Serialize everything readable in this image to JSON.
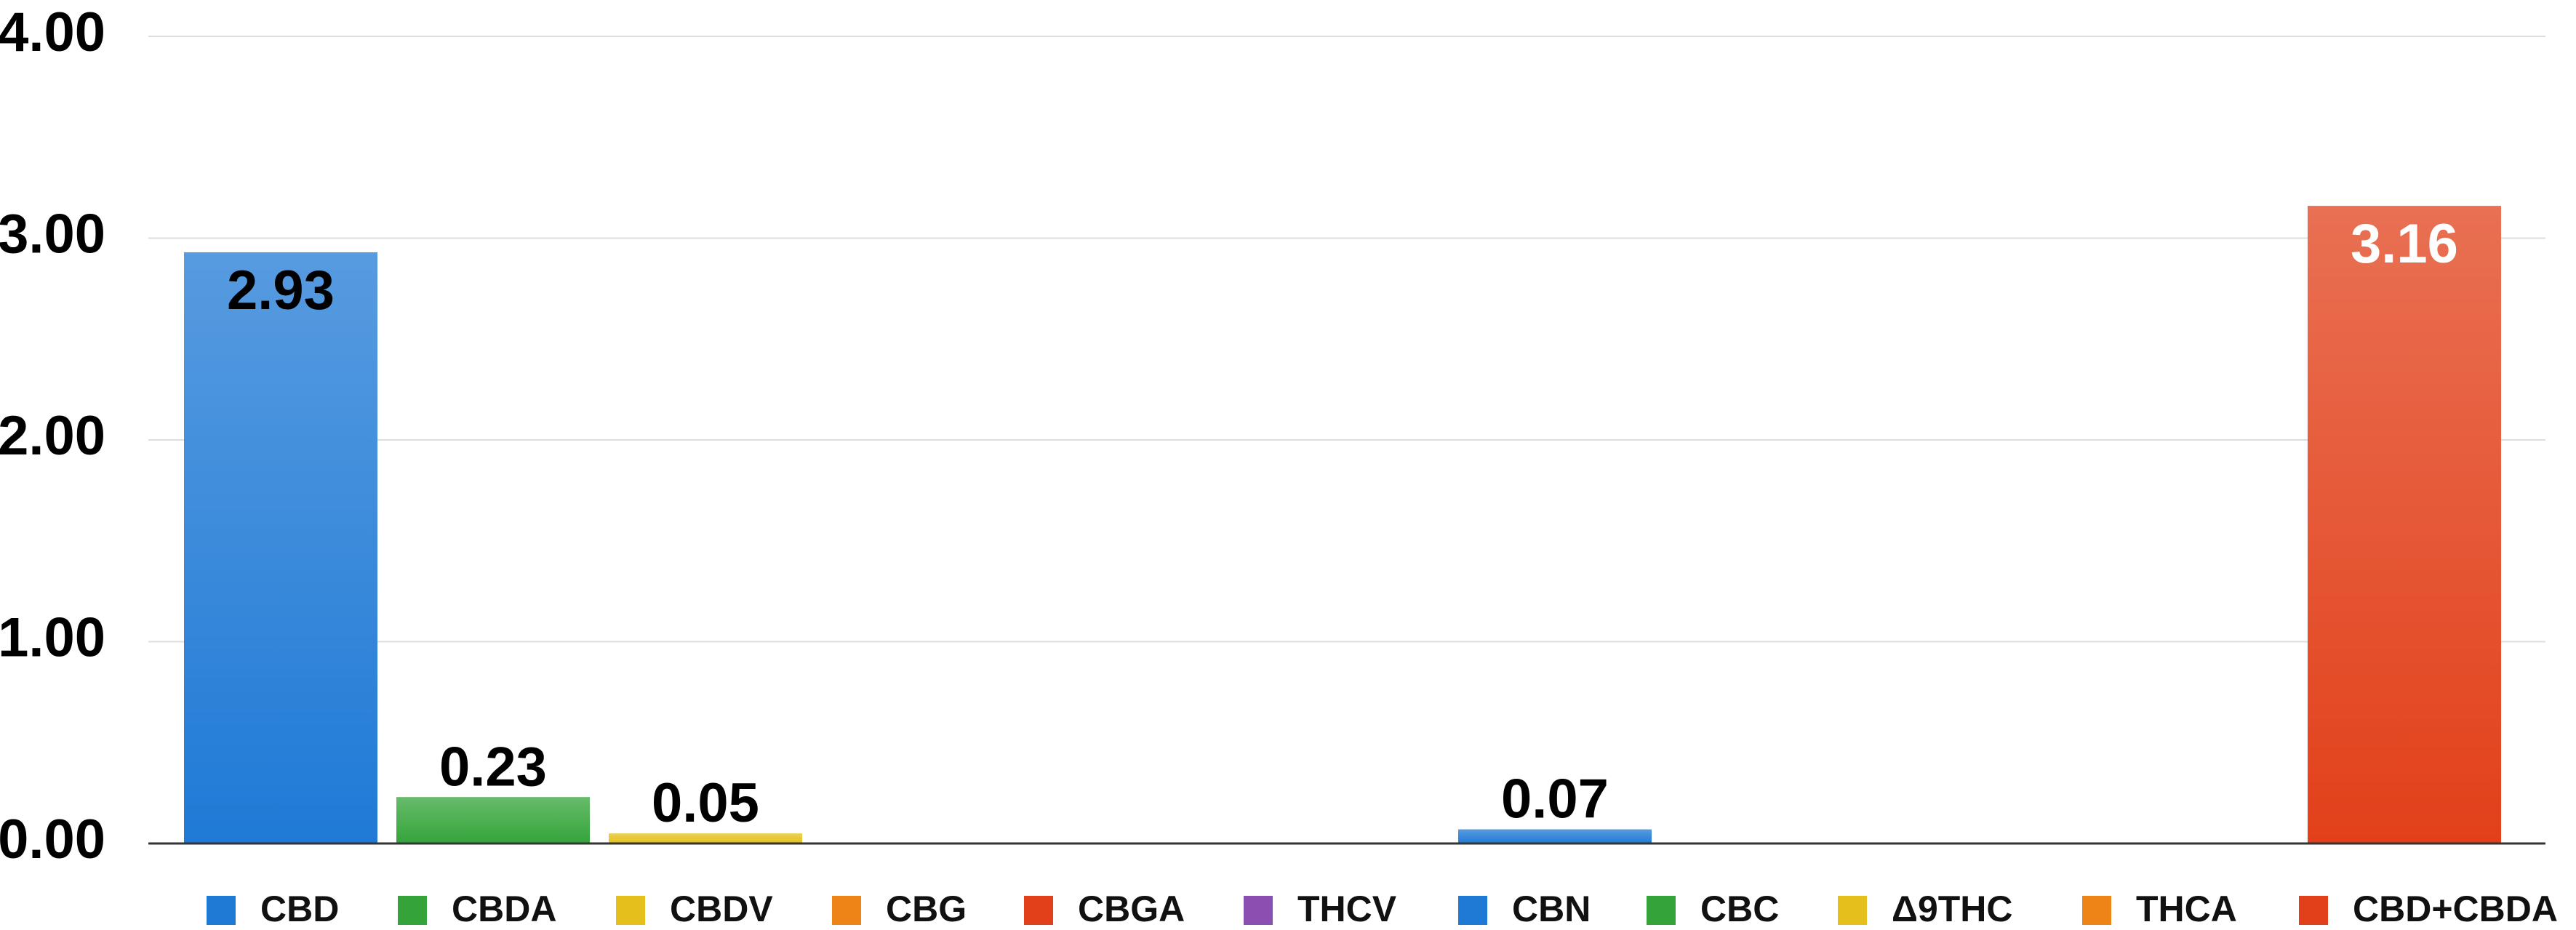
{
  "chart_data": {
    "type": "bar",
    "ylim": [
      0,
      4
    ],
    "yticks": [
      {
        "value": 0,
        "label": "0.00"
      },
      {
        "value": 1,
        "label": "1.00"
      },
      {
        "value": 2,
        "label": "2.00"
      },
      {
        "value": 3,
        "label": "3.00"
      },
      {
        "value": 4,
        "label": "4.00"
      }
    ],
    "grid": true,
    "legend": "bottom",
    "series": [
      {
        "name": "CBD",
        "color": "#1f7ad6",
        "label_color": "#000000",
        "values": [
          2.93
        ]
      },
      {
        "name": "CBDA",
        "color": "#34a43a",
        "label_color": "#000000",
        "values": [
          0.23
        ]
      },
      {
        "name": "CBDV",
        "color": "#e5c01c",
        "label_color": "#000000",
        "values": [
          0.05
        ]
      },
      {
        "name": "CBG",
        "color": "#ee8418",
        "label_color": "#000000",
        "values": [
          0
        ]
      },
      {
        "name": "CBGA",
        "color": "#e2401a",
        "label_color": "#000000",
        "values": [
          0
        ]
      },
      {
        "name": "THCV",
        "color": "#8a4fb0",
        "label_color": "#000000",
        "values": [
          0
        ]
      },
      {
        "name": "CBN",
        "color": "#1f7ad6",
        "label_color": "#000000",
        "values": [
          0.07
        ]
      },
      {
        "name": "CBC",
        "color": "#34a43a",
        "label_color": "#000000",
        "values": [
          0
        ]
      },
      {
        "name": "Δ9THC",
        "color": "#e5c01c",
        "label_color": "#000000",
        "values": [
          0
        ]
      },
      {
        "name": "THCA",
        "color": "#ee8418",
        "label_color": "#000000",
        "values": [
          0
        ]
      },
      {
        "name": "CBD+CBDA",
        "color": "#e2401a",
        "label_color": "#ffffff",
        "values": [
          3.16
        ]
      }
    ]
  }
}
